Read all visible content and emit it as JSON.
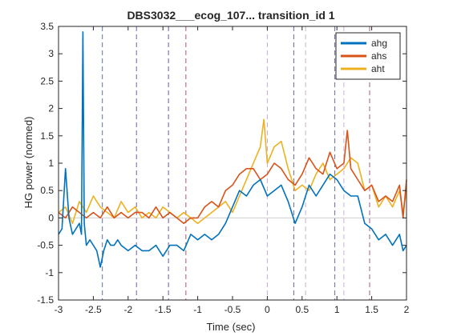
{
  "chart_data": {
    "type": "line",
    "title": "DBS3032___ecog_107... transition_id 1",
    "xlabel": "Time (sec)",
    "ylabel": "HG power (normed)",
    "xlim": [
      -3,
      2
    ],
    "ylim": [
      -1.5,
      3.5
    ],
    "x_ticks": [
      "-3",
      "-2.5",
      "-2",
      "-1.5",
      "-1",
      "-0.5",
      "0",
      "0.5",
      "1",
      "1.5",
      "2"
    ],
    "y_ticks": [
      "-1.5",
      "-1",
      "-0.5",
      "0",
      "0.5",
      "1",
      "1.5",
      "2",
      "2.5",
      "3",
      "3.5"
    ],
    "legend_position": "top-right",
    "zero_line": {
      "y": 0,
      "color": "#cfcfcf"
    },
    "vlines": [
      {
        "x": -2.37,
        "color": "#5a6fc0"
      },
      {
        "x": -1.88,
        "color": "#7a5bb0"
      },
      {
        "x": -1.42,
        "color": "#6a5aa8"
      },
      {
        "x": -1.17,
        "color": "#b0556a"
      },
      {
        "x": 0.0,
        "color": "#c8a8e0"
      },
      {
        "x": 0.38,
        "color": "#6a6a88"
      },
      {
        "x": 0.55,
        "color": "#c8b0c8"
      },
      {
        "x": 0.97,
        "color": "#6a6aa0"
      },
      {
        "x": 1.1,
        "color": "#c8b0d8"
      },
      {
        "x": 1.47,
        "color": "#a05a80"
      }
    ],
    "series": [
      {
        "name": "ahg",
        "color": "#0072BD",
        "x": [
          -3.0,
          -2.95,
          -2.9,
          -2.85,
          -2.8,
          -2.75,
          -2.7,
          -2.67,
          -2.65,
          -2.63,
          -2.6,
          -2.55,
          -2.5,
          -2.45,
          -2.4,
          -2.35,
          -2.3,
          -2.25,
          -2.2,
          -2.15,
          -2.1,
          -2.0,
          -1.9,
          -1.8,
          -1.7,
          -1.6,
          -1.5,
          -1.4,
          -1.3,
          -1.2,
          -1.1,
          -1.0,
          -0.9,
          -0.8,
          -0.7,
          -0.6,
          -0.5,
          -0.4,
          -0.3,
          -0.2,
          -0.1,
          0.0,
          0.1,
          0.2,
          0.3,
          0.4,
          0.5,
          0.6,
          0.7,
          0.8,
          0.9,
          1.0,
          1.1,
          1.2,
          1.3,
          1.4,
          1.5,
          1.6,
          1.7,
          1.8,
          1.9,
          1.95,
          2.0
        ],
        "y": [
          -0.3,
          -0.2,
          0.9,
          0.0,
          -0.3,
          -0.2,
          -0.1,
          -0.3,
          3.4,
          -0.1,
          -0.5,
          -0.4,
          -0.5,
          -0.6,
          -0.9,
          -0.6,
          -0.4,
          -0.5,
          -0.5,
          -0.4,
          -0.5,
          -0.6,
          -0.5,
          -0.6,
          -0.6,
          -0.5,
          -0.7,
          -0.5,
          -0.5,
          -0.6,
          -0.3,
          -0.4,
          -0.3,
          -0.4,
          -0.3,
          -0.1,
          0.2,
          0.5,
          0.4,
          0.6,
          0.7,
          0.4,
          0.5,
          0.6,
          0.3,
          -0.1,
          0.2,
          0.6,
          0.4,
          0.6,
          0.8,
          0.7,
          0.5,
          0.4,
          0.4,
          -0.1,
          -0.2,
          -0.4,
          -0.3,
          -0.5,
          -0.3,
          -0.6,
          -0.5
        ]
      },
      {
        "name": "ahs",
        "color": "#D95319",
        "x": [
          -3.0,
          -2.9,
          -2.8,
          -2.7,
          -2.6,
          -2.5,
          -2.4,
          -2.3,
          -2.2,
          -2.1,
          -2.0,
          -1.9,
          -1.8,
          -1.7,
          -1.6,
          -1.5,
          -1.4,
          -1.3,
          -1.2,
          -1.1,
          -1.0,
          -0.9,
          -0.8,
          -0.7,
          -0.6,
          -0.5,
          -0.4,
          -0.3,
          -0.2,
          -0.1,
          0.0,
          0.1,
          0.2,
          0.3,
          0.4,
          0.5,
          0.6,
          0.7,
          0.8,
          0.9,
          1.0,
          1.1,
          1.15,
          1.2,
          1.3,
          1.4,
          1.5,
          1.6,
          1.7,
          1.8,
          1.9,
          1.95,
          2.0
        ],
        "y": [
          0.1,
          0.0,
          0.2,
          0.1,
          0.0,
          0.1,
          0.0,
          0.2,
          0.0,
          0.1,
          0.0,
          0.1,
          0.1,
          0.0,
          0.2,
          0.0,
          0.1,
          0.0,
          -0.1,
          0.0,
          0.0,
          0.2,
          0.3,
          0.2,
          0.5,
          0.6,
          0.8,
          0.9,
          0.9,
          0.7,
          0.8,
          1.0,
          0.9,
          0.7,
          0.6,
          0.8,
          1.1,
          0.9,
          0.8,
          1.2,
          0.9,
          1.0,
          1.6,
          0.9,
          0.7,
          0.5,
          0.6,
          0.3,
          0.4,
          0.3,
          0.6,
          0.0,
          0.7
        ]
      },
      {
        "name": "aht",
        "color": "#EDB120",
        "x": [
          -3.0,
          -2.9,
          -2.8,
          -2.7,
          -2.6,
          -2.5,
          -2.4,
          -2.3,
          -2.2,
          -2.1,
          -2.0,
          -1.9,
          -1.8,
          -1.7,
          -1.6,
          -1.5,
          -1.4,
          -1.3,
          -1.2,
          -1.1,
          -1.0,
          -0.9,
          -0.8,
          -0.7,
          -0.6,
          -0.5,
          -0.4,
          -0.3,
          -0.2,
          -0.1,
          -0.05,
          0.0,
          0.1,
          0.2,
          0.3,
          0.4,
          0.5,
          0.6,
          0.7,
          0.8,
          0.9,
          1.0,
          1.1,
          1.2,
          1.3,
          1.4,
          1.5,
          1.6,
          1.7,
          1.8,
          1.9,
          1.95,
          2.0
        ],
        "y": [
          0.1,
          0.2,
          -0.1,
          0.3,
          0.1,
          0.4,
          0.2,
          0.1,
          0.0,
          0.3,
          0.1,
          0.2,
          0.0,
          0.1,
          0.0,
          0.2,
          0.1,
          0.0,
          0.1,
          0.0,
          -0.1,
          0.0,
          0.1,
          0.2,
          0.3,
          0.1,
          0.4,
          0.7,
          1.0,
          1.3,
          1.8,
          1.0,
          1.3,
          1.4,
          0.9,
          0.5,
          0.6,
          0.5,
          0.8,
          1.0,
          0.7,
          0.8,
          0.9,
          1.1,
          1.0,
          0.5,
          0.6,
          0.2,
          0.4,
          0.2,
          0.5,
          0.1,
          0.5
        ]
      }
    ]
  }
}
